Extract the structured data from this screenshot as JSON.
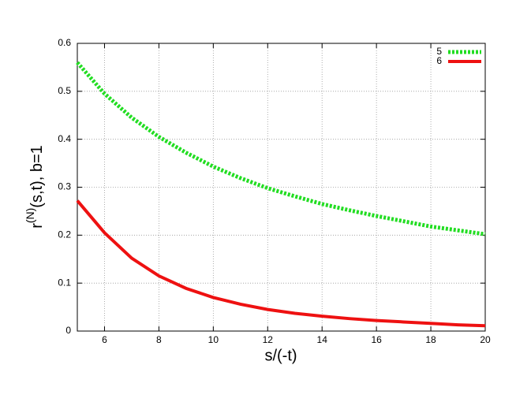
{
  "chart_data": {
    "type": "line",
    "xlabel": "s/(-t)",
    "ylabel_parts": [
      "r",
      "(N)",
      "(s,t), b=1"
    ],
    "x": [
      5,
      6,
      7,
      8,
      9,
      10,
      11,
      12,
      13,
      14,
      15,
      16,
      17,
      18,
      19,
      20
    ],
    "series": [
      {
        "name": "5",
        "color": "#22dd22",
        "dashed": true,
        "values": [
          0.56,
          0.495,
          0.445,
          0.405,
          0.372,
          0.343,
          0.319,
          0.298,
          0.281,
          0.265,
          0.252,
          0.24,
          0.229,
          0.218,
          0.21,
          0.202
        ]
      },
      {
        "name": "6",
        "color": "#ee1111",
        "dashed": false,
        "values": [
          0.272,
          0.205,
          0.152,
          0.115,
          0.089,
          0.07,
          0.056,
          0.045,
          0.037,
          0.031,
          0.026,
          0.022,
          0.019,
          0.016,
          0.013,
          0.011
        ]
      }
    ],
    "xlim": [
      5,
      20
    ],
    "xticks": [
      6,
      8,
      10,
      12,
      14,
      16,
      18,
      20
    ],
    "ylim": [
      0,
      0.6
    ],
    "yticks": [
      0,
      0.1,
      0.2,
      0.3,
      0.4,
      0.5,
      0.6
    ],
    "grid": true,
    "legend": "top-right"
  }
}
